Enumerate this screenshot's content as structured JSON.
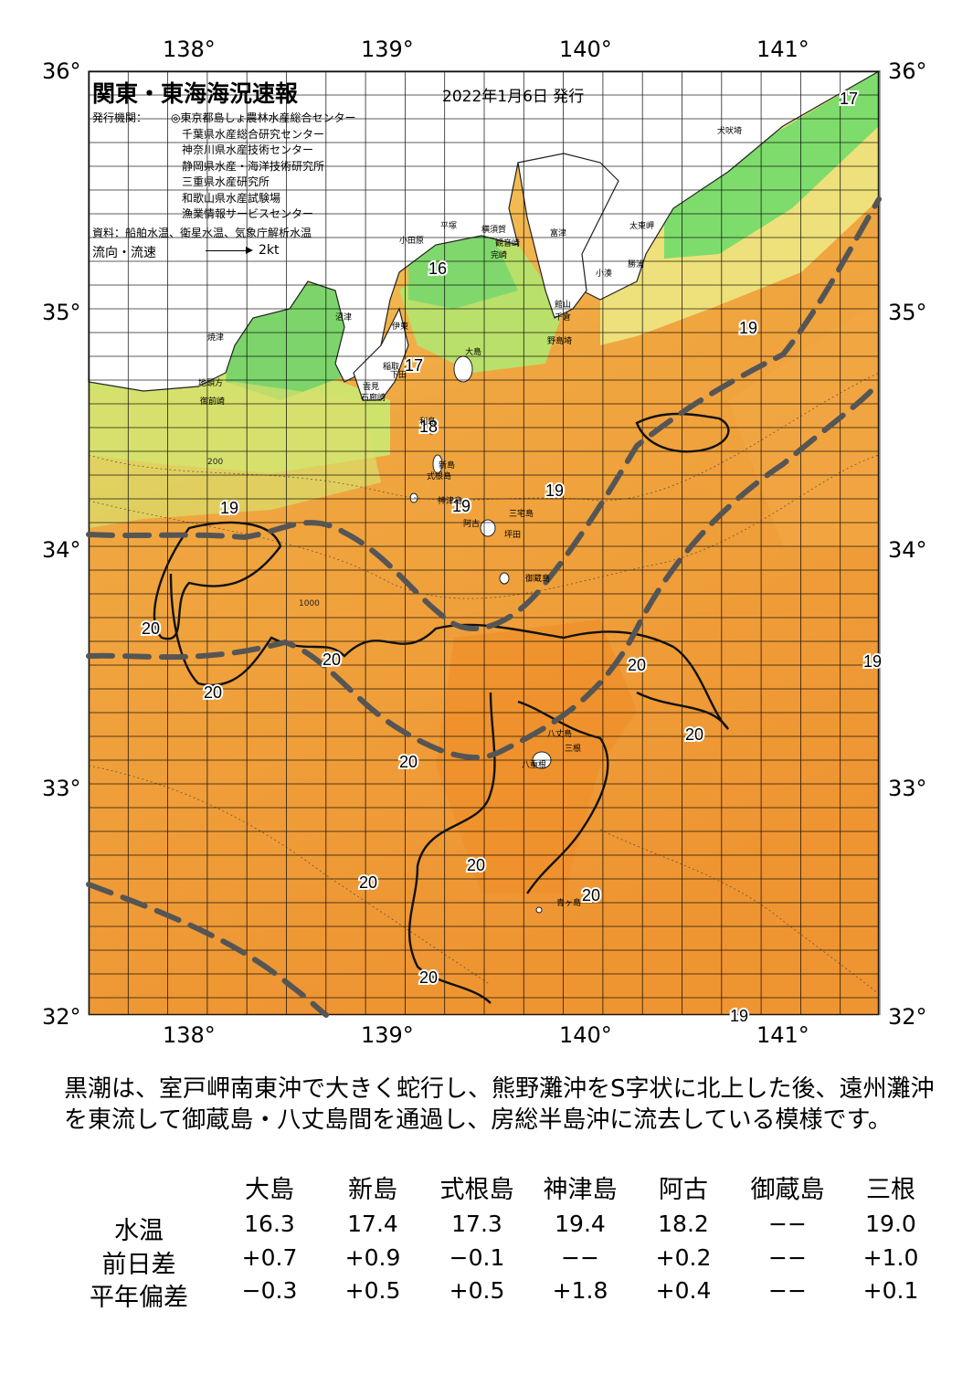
{
  "map": {
    "title": "関東・東海海況速報",
    "date": "2022年1月6日 発行",
    "issuer_label": "発行機関：",
    "issuers": [
      "◎東京都島しょ農林水産総合センター",
      "千葉県水産総合研究センター",
      "神奈川県水産技術センター",
      "静岡県水産・海洋技術研究所",
      "三重県水産研究所",
      "和歌山県水産試験場",
      "漁業情報サービスセンター"
    ],
    "sources": "資料：船舶水温、衛星水温、気象庁解析水温",
    "flow_label": "流向・流速",
    "flow_scale": "2kt",
    "lon_labels": [
      "138°",
      "139°",
      "140°",
      "141°"
    ],
    "lat_labels": [
      "36°",
      "35°",
      "34°",
      "33°",
      "32°"
    ],
    "isotherm_labels": [
      {
        "text": "17",
        "place": "north-east"
      },
      {
        "text": "16",
        "place": "sagami-bay"
      },
      {
        "text": "17",
        "place": "izu-east"
      },
      {
        "text": "18",
        "place": "toshima"
      },
      {
        "text": "19",
        "place": "kozu"
      },
      {
        "text": "19",
        "place": "miyake-north"
      },
      {
        "text": "19",
        "place": "boso-east"
      },
      {
        "text": "19",
        "place": "suruga-south"
      },
      {
        "text": "19",
        "place": "east-edge"
      },
      {
        "text": "19",
        "place": "south-east"
      },
      {
        "text": "20",
        "place": "west-1"
      },
      {
        "text": "20",
        "place": "west-2"
      },
      {
        "text": "20",
        "place": "center-1"
      },
      {
        "text": "20",
        "place": "center-2"
      },
      {
        "text": "20",
        "place": "hachijo-east"
      },
      {
        "text": "20",
        "place": "east-1"
      },
      {
        "text": "20",
        "place": "south-1"
      },
      {
        "text": "20",
        "place": "south-2"
      },
      {
        "text": "20",
        "place": "south-3"
      },
      {
        "text": "20",
        "place": "south-4"
      }
    ],
    "place_names": [
      "犬吠埼",
      "太東岬",
      "勝浦",
      "小湊",
      "富津",
      "横須賀",
      "観音崎",
      "平塚",
      "完崎",
      "千倉",
      "館山",
      "野島埼",
      "小田原",
      "伊東",
      "沼津",
      "焼津",
      "地頭方",
      "御前崎",
      "稲取",
      "下田",
      "石廊崎",
      "雲見",
      "大島",
      "利島",
      "新島",
      "式根島",
      "神津島",
      "三宅島",
      "阿古",
      "坪田",
      "御蔵島",
      "八丈島",
      "三根",
      "八重根",
      "青ヶ島"
    ],
    "depth_labels": [
      "200",
      "1000"
    ],
    "colors": {
      "land": "#ffffff",
      "sea_cool": "#6fd66a",
      "sea_mid": "#f2e77a",
      "sea_warm": "#f0a038",
      "kuroshio_axis": "#555555",
      "grid": "#000000"
    }
  },
  "description": "黒潮は、室戸岬南東沖で大きく蛇行し、熊野灘沖をS字状に北上した後、遠州灘沖を東流して御蔵島・八丈島間を通過し、房総半島沖に流去している模様です。",
  "table": {
    "columns": [
      "大島",
      "新島",
      "式根島",
      "神津島",
      "阿古",
      "御蔵島",
      "三根"
    ],
    "rows": [
      {
        "label": "水温",
        "values": [
          "16.3",
          "17.4",
          "17.3",
          "19.4",
          "18.2",
          "−−",
          "19.0"
        ]
      },
      {
        "label": "前日差",
        "values": [
          "+0.7",
          "+0.9",
          "−0.1",
          "−−",
          "+0.2",
          "−−",
          "+1.0"
        ]
      },
      {
        "label": "平年偏差",
        "values": [
          "−0.3",
          "+0.5",
          "+0.5",
          "+1.8",
          "+0.4",
          "−−",
          "+0.1"
        ]
      }
    ]
  }
}
